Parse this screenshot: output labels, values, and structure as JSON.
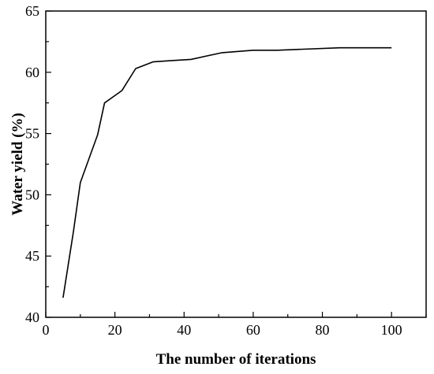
{
  "chart_data": {
    "type": "line",
    "title": "",
    "xlabel": "The number of iterations",
    "ylabel": "Water yield (%)",
    "xlim": [
      0,
      110
    ],
    "ylim": [
      40,
      65
    ],
    "xticks": [
      0,
      20,
      40,
      60,
      80,
      100
    ],
    "yticks": [
      40,
      45,
      50,
      55,
      60,
      65
    ],
    "x_minor_step": 10,
    "y_minor_step": 2.5,
    "grid": false,
    "legend": "none",
    "line_color": "#000000",
    "series": [
      {
        "x": [
          5,
          8,
          10,
          15,
          17,
          22,
          26,
          31,
          36,
          42,
          51,
          60,
          67,
          85,
          100
        ],
        "y": [
          41.6,
          47.0,
          51.0,
          54.9,
          57.5,
          58.5,
          60.3,
          60.85,
          60.95,
          61.05,
          61.6,
          61.8,
          61.8,
          62.0,
          62.0
        ]
      }
    ]
  }
}
